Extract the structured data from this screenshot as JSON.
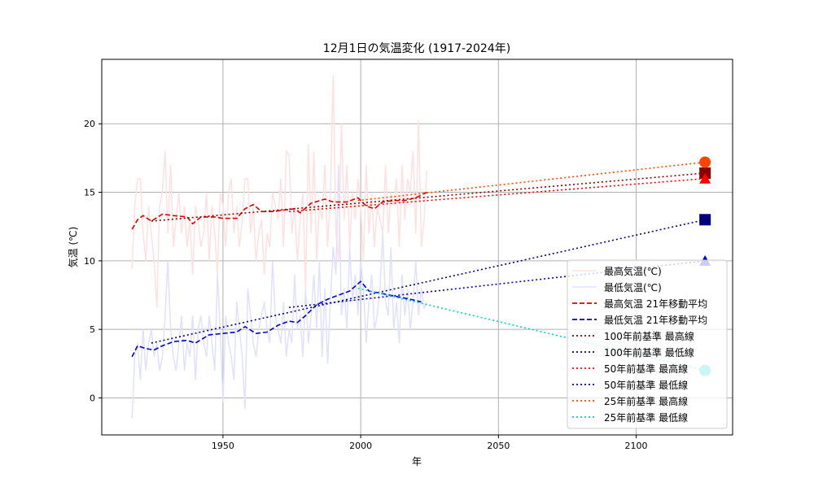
{
  "chart_data": {
    "type": "line",
    "title": "12月1日の気温変化 (1917-2024年)",
    "xlabel": "年",
    "ylabel": "気温 (℃)",
    "xlim": [
      1906,
      2135
    ],
    "ylim": [
      -2.7,
      24.7
    ],
    "xticks": [
      1950,
      2000,
      2050,
      2100
    ],
    "yticks": [
      0,
      5,
      10,
      15,
      20
    ],
    "grid": true,
    "legend_placement": "lower-right",
    "years": [
      1917,
      1918,
      1919,
      1920,
      1921,
      1922,
      1923,
      1924,
      1925,
      1926,
      1927,
      1928,
      1929,
      1930,
      1931,
      1932,
      1933,
      1934,
      1935,
      1936,
      1937,
      1938,
      1939,
      1940,
      1941,
      1942,
      1943,
      1944,
      1945,
      1946,
      1947,
      1948,
      1949,
      1950,
      1951,
      1952,
      1953,
      1954,
      1955,
      1956,
      1957,
      1958,
      1959,
      1960,
      1961,
      1962,
      1963,
      1964,
      1965,
      1966,
      1967,
      1968,
      1969,
      1970,
      1971,
      1972,
      1973,
      1974,
      1975,
      1976,
      1977,
      1978,
      1979,
      1980,
      1981,
      1982,
      1983,
      1984,
      1985,
      1986,
      1987,
      1988,
      1989,
      1990,
      1991,
      1992,
      1993,
      1994,
      1995,
      1996,
      1997,
      1998,
      1999,
      2000,
      2001,
      2002,
      2003,
      2004,
      2005,
      2006,
      2007,
      2008,
      2009,
      2010,
      2011,
      2012,
      2013,
      2014,
      2015,
      2016,
      2017,
      2018,
      2019,
      2020,
      2021,
      2022,
      2023,
      2024
    ],
    "series": [
      {
        "name": "最高気温(℃)",
        "color": "#ffe0e0",
        "style": "solid",
        "values": [
          9.4,
          14,
          16,
          16,
          12,
          10,
          14,
          12,
          10,
          6.6,
          14,
          15,
          18,
          12,
          17,
          11,
          13,
          15,
          12,
          14,
          11,
          13,
          9,
          14,
          13,
          11,
          12,
          15,
          10,
          14,
          12,
          9,
          15,
          14,
          11,
          15,
          16,
          12,
          14,
          11,
          13,
          16,
          16,
          12,
          14,
          10,
          12,
          13,
          9,
          12,
          11,
          15,
          14,
          13,
          16,
          11,
          18,
          17.7,
          12,
          14,
          10,
          13,
          15,
          8,
          18.5,
          12,
          18,
          10,
          14,
          13,
          17,
          11,
          15,
          23.5,
          12,
          10,
          20,
          13,
          17,
          11,
          15,
          13,
          16,
          14,
          10,
          17,
          12,
          15,
          11,
          14,
          13,
          12,
          17,
          12,
          15,
          14,
          16,
          11,
          17,
          13,
          16,
          15,
          18,
          12,
          20.3,
          11,
          13,
          16.6
        ]
      },
      {
        "name": "最低気温(℃)",
        "color": "#e0e0ff",
        "style": "solid",
        "values": [
          -1.5,
          3,
          4,
          1.3,
          5,
          2,
          4,
          5,
          3,
          4,
          2,
          3,
          6,
          10,
          5,
          3,
          2,
          4,
          6,
          2,
          4,
          3,
          6,
          1.3,
          5,
          6,
          4,
          3,
          6,
          4,
          2,
          9,
          5,
          -0.3,
          6,
          4,
          3,
          1.3,
          7,
          5,
          3,
          -0.8,
          8,
          6,
          4,
          3,
          5,
          6,
          7,
          5,
          4,
          10,
          6,
          5,
          4,
          7,
          3,
          5,
          4,
          9,
          5,
          6,
          3,
          8,
          4,
          6,
          9,
          5,
          10,
          3,
          8,
          2.5,
          7,
          11,
          9,
          17,
          6,
          8,
          5,
          11,
          7,
          9,
          6,
          10,
          8,
          4,
          7,
          9,
          5,
          6,
          8,
          12,
          7,
          6,
          11,
          5,
          7,
          4,
          9,
          6,
          8,
          5,
          7,
          10,
          6,
          8,
          6.5,
          7
        ]
      },
      {
        "name": "最高気温 21年移動平均",
        "color": "#dd0000",
        "style": "dashed",
        "points": [
          [
            1917,
            12.3
          ],
          [
            1919,
            13.0
          ],
          [
            1921,
            13.3
          ],
          [
            1924,
            12.9
          ],
          [
            1928,
            13.4
          ],
          [
            1932,
            13.3
          ],
          [
            1937,
            13.2
          ],
          [
            1939,
            12.7
          ],
          [
            1942,
            13.2
          ],
          [
            1947,
            13.2
          ],
          [
            1950,
            13.1
          ],
          [
            1955,
            13.1
          ],
          [
            1958,
            13.8
          ],
          [
            1961,
            14.1
          ],
          [
            1964,
            13.6
          ],
          [
            1968,
            13.6
          ],
          [
            1972,
            13.7
          ],
          [
            1976,
            13.8
          ],
          [
            1978,
            13.5
          ],
          [
            1982,
            14.2
          ],
          [
            1987,
            14.5
          ],
          [
            1990,
            14.3
          ],
          [
            1995,
            14.3
          ],
          [
            1999,
            14.6
          ],
          [
            2002,
            14.0
          ],
          [
            2005,
            13.8
          ],
          [
            2008,
            14.3
          ],
          [
            2012,
            14.4
          ],
          [
            2016,
            14.4
          ],
          [
            2020,
            14.6
          ],
          [
            2024,
            15.0
          ]
        ]
      },
      {
        "name": "最低気温 21年移動平均",
        "color": "#0000cc",
        "style": "dashed",
        "points": [
          [
            1917,
            3.0
          ],
          [
            1919,
            3.8
          ],
          [
            1922,
            3.6
          ],
          [
            1925,
            3.5
          ],
          [
            1928,
            3.8
          ],
          [
            1932,
            4.1
          ],
          [
            1937,
            4.2
          ],
          [
            1940,
            4.0
          ],
          [
            1945,
            4.6
          ],
          [
            1950,
            4.7
          ],
          [
            1955,
            4.8
          ],
          [
            1958,
            5.2
          ],
          [
            1962,
            4.7
          ],
          [
            1966,
            4.8
          ],
          [
            1970,
            5.3
          ],
          [
            1974,
            5.6
          ],
          [
            1977,
            5.5
          ],
          [
            1980,
            6.0
          ],
          [
            1984,
            6.8
          ],
          [
            1988,
            7.2
          ],
          [
            1992,
            7.5
          ],
          [
            1996,
            7.8
          ],
          [
            2000,
            8.5
          ],
          [
            2003,
            7.8
          ],
          [
            2008,
            7.6
          ],
          [
            2013,
            7.4
          ],
          [
            2018,
            7.2
          ],
          [
            2022,
            7.0
          ]
        ]
      },
      {
        "name": "100年前基準 最高線",
        "color": "#8b0000",
        "style": "dotted",
        "points": [
          [
            1924,
            12.9
          ],
          [
            2125,
            16.4
          ]
        ],
        "marker": "square"
      },
      {
        "name": "100年前基準 最低線",
        "color": "#000080",
        "style": "dotted",
        "points": [
          [
            1924,
            4.0
          ],
          [
            2125,
            13.0
          ]
        ],
        "marker": "square"
      },
      {
        "name": "50年前基準 最高線",
        "color": "#ff0000",
        "style": "dotted",
        "points": [
          [
            1974,
            13.6
          ],
          [
            2125,
            16.0
          ]
        ],
        "marker": "triangle"
      },
      {
        "name": "50年前基準 最低線",
        "color": "#0000cd",
        "style": "dotted",
        "points": [
          [
            1974,
            6.6
          ],
          [
            2125,
            10.0
          ]
        ],
        "marker": "triangle"
      },
      {
        "name": "25年前基準 最高線",
        "color": "#ff4500",
        "style": "dotted",
        "points": [
          [
            1999,
            14.4
          ],
          [
            2125,
            17.2
          ]
        ],
        "marker": "circle"
      },
      {
        "name": "25年前基準 最低線",
        "color": "#00ced1",
        "style": "dotted",
        "points": [
          [
            1999,
            8.0
          ],
          [
            2125,
            2.0
          ]
        ],
        "marker": "circle"
      }
    ]
  }
}
